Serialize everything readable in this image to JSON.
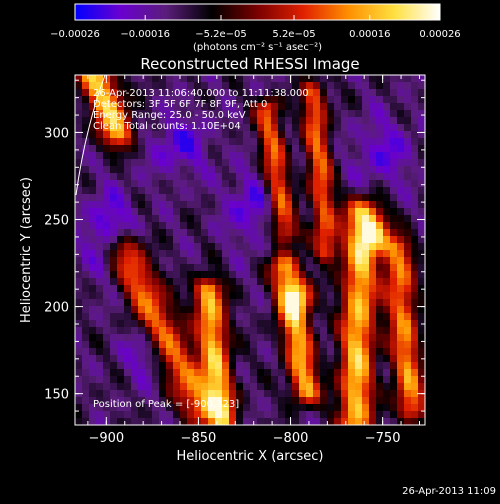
{
  "chart_data": {
    "type": "heatmap",
    "title": "Reconstructed RHESSI Image",
    "xlabel": "Heliocentric X (arcsec)",
    "ylabel": "Heliocentric Y (arcsec)",
    "xlim": [
      -917,
      -727
    ],
    "ylim": [
      132,
      333
    ],
    "x_ticks": [
      -900,
      -850,
      -800,
      -750
    ],
    "y_ticks": [
      150,
      200,
      250,
      300
    ],
    "x_tick_labels": [
      "−900",
      "−850",
      "−800",
      "−750"
    ],
    "y_tick_labels": [
      "150",
      "200",
      "250",
      "300"
    ],
    "colorbar": {
      "min": -0.00026,
      "max": 0.00026,
      "ticks": [
        -0.00026,
        -0.00016,
        -5.2e-05,
        5.2e-05,
        0.00016,
        0.00026
      ],
      "tick_labels": [
        "−0.00026",
        "−0.00016",
        "−5.2e−05",
        "5.2e−05",
        "0.00016",
        "0.00026"
      ],
      "units": "(photons cm⁻² s⁻¹ asec⁻²)",
      "colormap": [
        "#0000ff",
        "#6a00d0",
        "#5a1d7a",
        "#000000",
        "#7a0000",
        "#e02000",
        "#ff9000",
        "#ffe040",
        "#ffffff"
      ]
    },
    "grid": false,
    "annotations": [
      "26-Apr-2013 11:06:40.000 to 11:11:38.000",
      "Detectors: 3F 5F 6F 7F 8F 9F, Att 0",
      "Energy Range: 25.0 - 50.0 keV",
      "Clean    Total counts: 1.10E+04"
    ],
    "peak_label": "Position of Peak = [-900,323]",
    "peak": [
      -900,
      323
    ]
  },
  "footer_timestamp": "26-Apr-2013 11:09"
}
